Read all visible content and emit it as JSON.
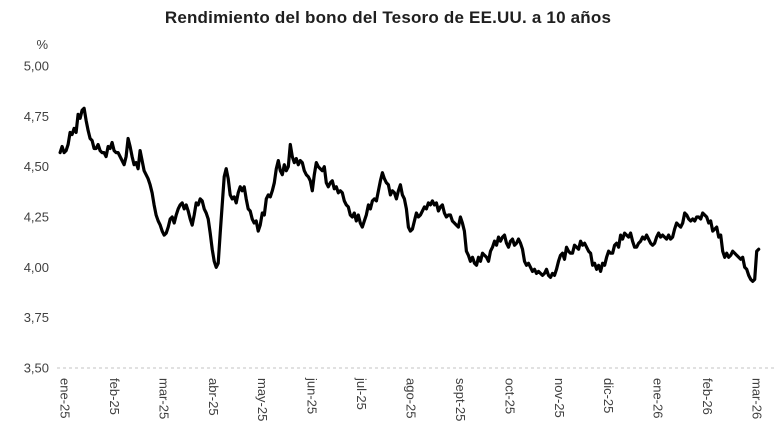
{
  "page": {
    "background": "#ffffff"
  },
  "chart_data": {
    "type": "line",
    "title": "Rendimiento del bono del Tesoro de EE.UU. a 10 años",
    "ylabel": "%",
    "xlabel": "",
    "ylim": [
      3.5,
      5.0
    ],
    "legend": "none",
    "grid": {
      "only_bottom_dashed_line_at": 3.5
    },
    "colors": {
      "title": "#1f1f1f",
      "axis_labels": "#404040",
      "line": "#000000",
      "gridline": "#c3c3c3"
    },
    "y_ticks": [
      {
        "value": 5.0,
        "label": "5,00"
      },
      {
        "value": 4.75,
        "label": "4,75"
      },
      {
        "value": 4.5,
        "label": "4,50"
      },
      {
        "value": 4.25,
        "label": "4,25"
      },
      {
        "value": 4.0,
        "label": "4,00"
      },
      {
        "value": 3.75,
        "label": "3,75"
      },
      {
        "value": 3.5,
        "label": "3,50"
      }
    ],
    "x_tick_labels": [
      "ene-25",
      "feb-25",
      "mar-25",
      "abr-25",
      "may-25",
      "jun-25",
      "jul-25",
      "ago-25",
      "sept-25",
      "oct-25",
      "nov-25",
      "dic-25",
      "ene-26",
      "feb-26",
      "mar-26"
    ],
    "series": [
      {
        "name": "Rendimiento del bono del Tesoro de EE.UU. a 10 años",
        "color": "#000000",
        "x_unit": "months_since_ene25",
        "x_start": -0.1,
        "x_step": 0.0405,
        "values": [
          4.57,
          4.6,
          4.57,
          4.58,
          4.61,
          4.67,
          4.66,
          4.69,
          4.67,
          4.76,
          4.74,
          4.78,
          4.79,
          4.73,
          4.68,
          4.64,
          4.63,
          4.59,
          4.59,
          4.61,
          4.58,
          4.57,
          4.57,
          4.55,
          4.6,
          4.59,
          4.62,
          4.58,
          4.57,
          4.57,
          4.55,
          4.53,
          4.51,
          4.55,
          4.64,
          4.6,
          4.55,
          4.51,
          4.52,
          4.49,
          4.58,
          4.53,
          4.48,
          4.46,
          4.44,
          4.41,
          4.37,
          4.31,
          4.26,
          4.23,
          4.21,
          4.18,
          4.16,
          4.17,
          4.2,
          4.24,
          4.25,
          4.22,
          4.26,
          4.29,
          4.31,
          4.32,
          4.29,
          4.31,
          4.28,
          4.24,
          4.21,
          4.26,
          4.32,
          4.31,
          4.34,
          4.33,
          4.29,
          4.27,
          4.24,
          4.17,
          4.09,
          4.03,
          4.0,
          4.02,
          4.17,
          4.31,
          4.45,
          4.49,
          4.44,
          4.36,
          4.34,
          4.35,
          4.32,
          4.37,
          4.4,
          4.38,
          4.4,
          4.34,
          4.29,
          4.28,
          4.24,
          4.22,
          4.23,
          4.18,
          4.21,
          4.27,
          4.26,
          4.34,
          4.36,
          4.35,
          4.38,
          4.42,
          4.49,
          4.53,
          4.48,
          4.46,
          4.51,
          4.48,
          4.5,
          4.61,
          4.55,
          4.52,
          4.54,
          4.51,
          4.53,
          4.52,
          4.48,
          4.46,
          4.45,
          4.43,
          4.38,
          4.46,
          4.52,
          4.5,
          4.49,
          4.48,
          4.5,
          4.42,
          4.4,
          4.42,
          4.43,
          4.39,
          4.4,
          4.37,
          4.38,
          4.37,
          4.33,
          4.31,
          4.3,
          4.26,
          4.25,
          4.27,
          4.23,
          4.26,
          4.22,
          4.2,
          4.23,
          4.26,
          4.31,
          4.29,
          4.33,
          4.34,
          4.33,
          4.38,
          4.43,
          4.47,
          4.44,
          4.42,
          4.41,
          4.36,
          4.38,
          4.37,
          4.34,
          4.38,
          4.41,
          4.36,
          4.34,
          4.29,
          4.2,
          4.18,
          4.19,
          4.23,
          4.27,
          4.25,
          4.26,
          4.28,
          4.3,
          4.29,
          4.32,
          4.31,
          4.33,
          4.31,
          4.32,
          4.28,
          4.3,
          4.31,
          4.27,
          4.25,
          4.26,
          4.26,
          4.23,
          4.22,
          4.21,
          4.2,
          4.25,
          4.22,
          4.18,
          4.08,
          4.06,
          4.03,
          4.05,
          4.02,
          4.01,
          4.05,
          4.03,
          4.07,
          4.06,
          4.05,
          4.03,
          4.08,
          4.1,
          4.13,
          4.11,
          4.15,
          4.13,
          4.15,
          4.16,
          4.12,
          4.1,
          4.13,
          4.14,
          4.11,
          4.12,
          4.14,
          4.12,
          4.09,
          4.03,
          4.01,
          4.02,
          4.0,
          3.98,
          3.99,
          3.97,
          3.98,
          3.97,
          3.96,
          3.97,
          3.99,
          3.96,
          3.95,
          3.97,
          3.96,
          3.99,
          4.03,
          4.06,
          4.07,
          4.04,
          4.1,
          4.08,
          4.07,
          4.07,
          4.11,
          4.1,
          4.09,
          4.13,
          4.11,
          4.12,
          4.1,
          4.08,
          4.07,
          4.01,
          4.02,
          3.99,
          4.01,
          3.98,
          4.02,
          4.01,
          4.05,
          4.08,
          4.07,
          4.07,
          4.11,
          4.12,
          4.1,
          4.16,
          4.14,
          4.17,
          4.16,
          4.15,
          4.17,
          4.13,
          4.1,
          4.1,
          4.12,
          4.13,
          4.15,
          4.14,
          4.16,
          4.14,
          4.12,
          4.11,
          4.12,
          4.15,
          4.17,
          4.15,
          4.16,
          4.15,
          4.14,
          4.16,
          4.14,
          4.15,
          4.19,
          4.22,
          4.21,
          4.2,
          4.22,
          4.27,
          4.26,
          4.24,
          4.23,
          4.24,
          4.23,
          4.25,
          4.25,
          4.24,
          4.27,
          4.26,
          4.25,
          4.22,
          4.23,
          4.18,
          4.19,
          4.2,
          4.15,
          4.16,
          4.08,
          4.05,
          4.07,
          4.05,
          4.06,
          4.08,
          4.07,
          4.06,
          4.05,
          4.04,
          4.05,
          4.0,
          3.99,
          3.96,
          3.94,
          3.93,
          3.94,
          4.08,
          4.09
        ]
      }
    ]
  }
}
